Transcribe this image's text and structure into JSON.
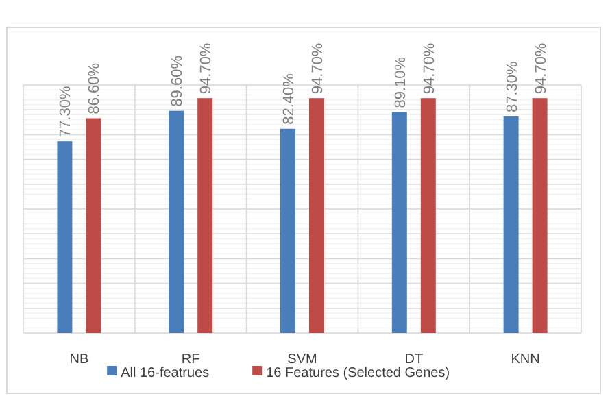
{
  "chart_data": {
    "type": "bar",
    "categories": [
      "NB",
      "RF",
      "SVM",
      "DT",
      "KNN"
    ],
    "series": [
      {
        "name": "All 16-featrues",
        "color": "#4a7ebb",
        "values": [
          77.3,
          89.6,
          82.4,
          89.1,
          87.3
        ],
        "value_labels": [
          "77.30%",
          "89.60%",
          "82.40%",
          "89.10%",
          "87.30%"
        ]
      },
      {
        "name": "16 Features (Selected Genes)",
        "color": "#be4b48",
        "values": [
          86.6,
          94.7,
          94.7,
          94.7,
          94.7
        ],
        "value_labels": [
          "86.60%",
          "94.70%",
          "94.70%",
          "94.70%",
          "94.70%"
        ]
      }
    ],
    "ylim": [
      0,
      100
    ],
    "yticks": [
      {
        "value": 0,
        "label": null
      },
      {
        "value": 10,
        "label": null
      },
      {
        "value": 20,
        "label": null
      },
      {
        "value": 30,
        "label": null
      },
      {
        "value": 40,
        "label": null
      },
      {
        "value": 50,
        "label": null
      },
      {
        "value": 60,
        "label": null
      },
      {
        "value": 70,
        "label": null
      },
      {
        "value": 80,
        "label": null
      },
      {
        "value": 90,
        "label": null
      },
      {
        "value": 100,
        "label": null
      }
    ],
    "grid": true,
    "legend": "bottom"
  }
}
